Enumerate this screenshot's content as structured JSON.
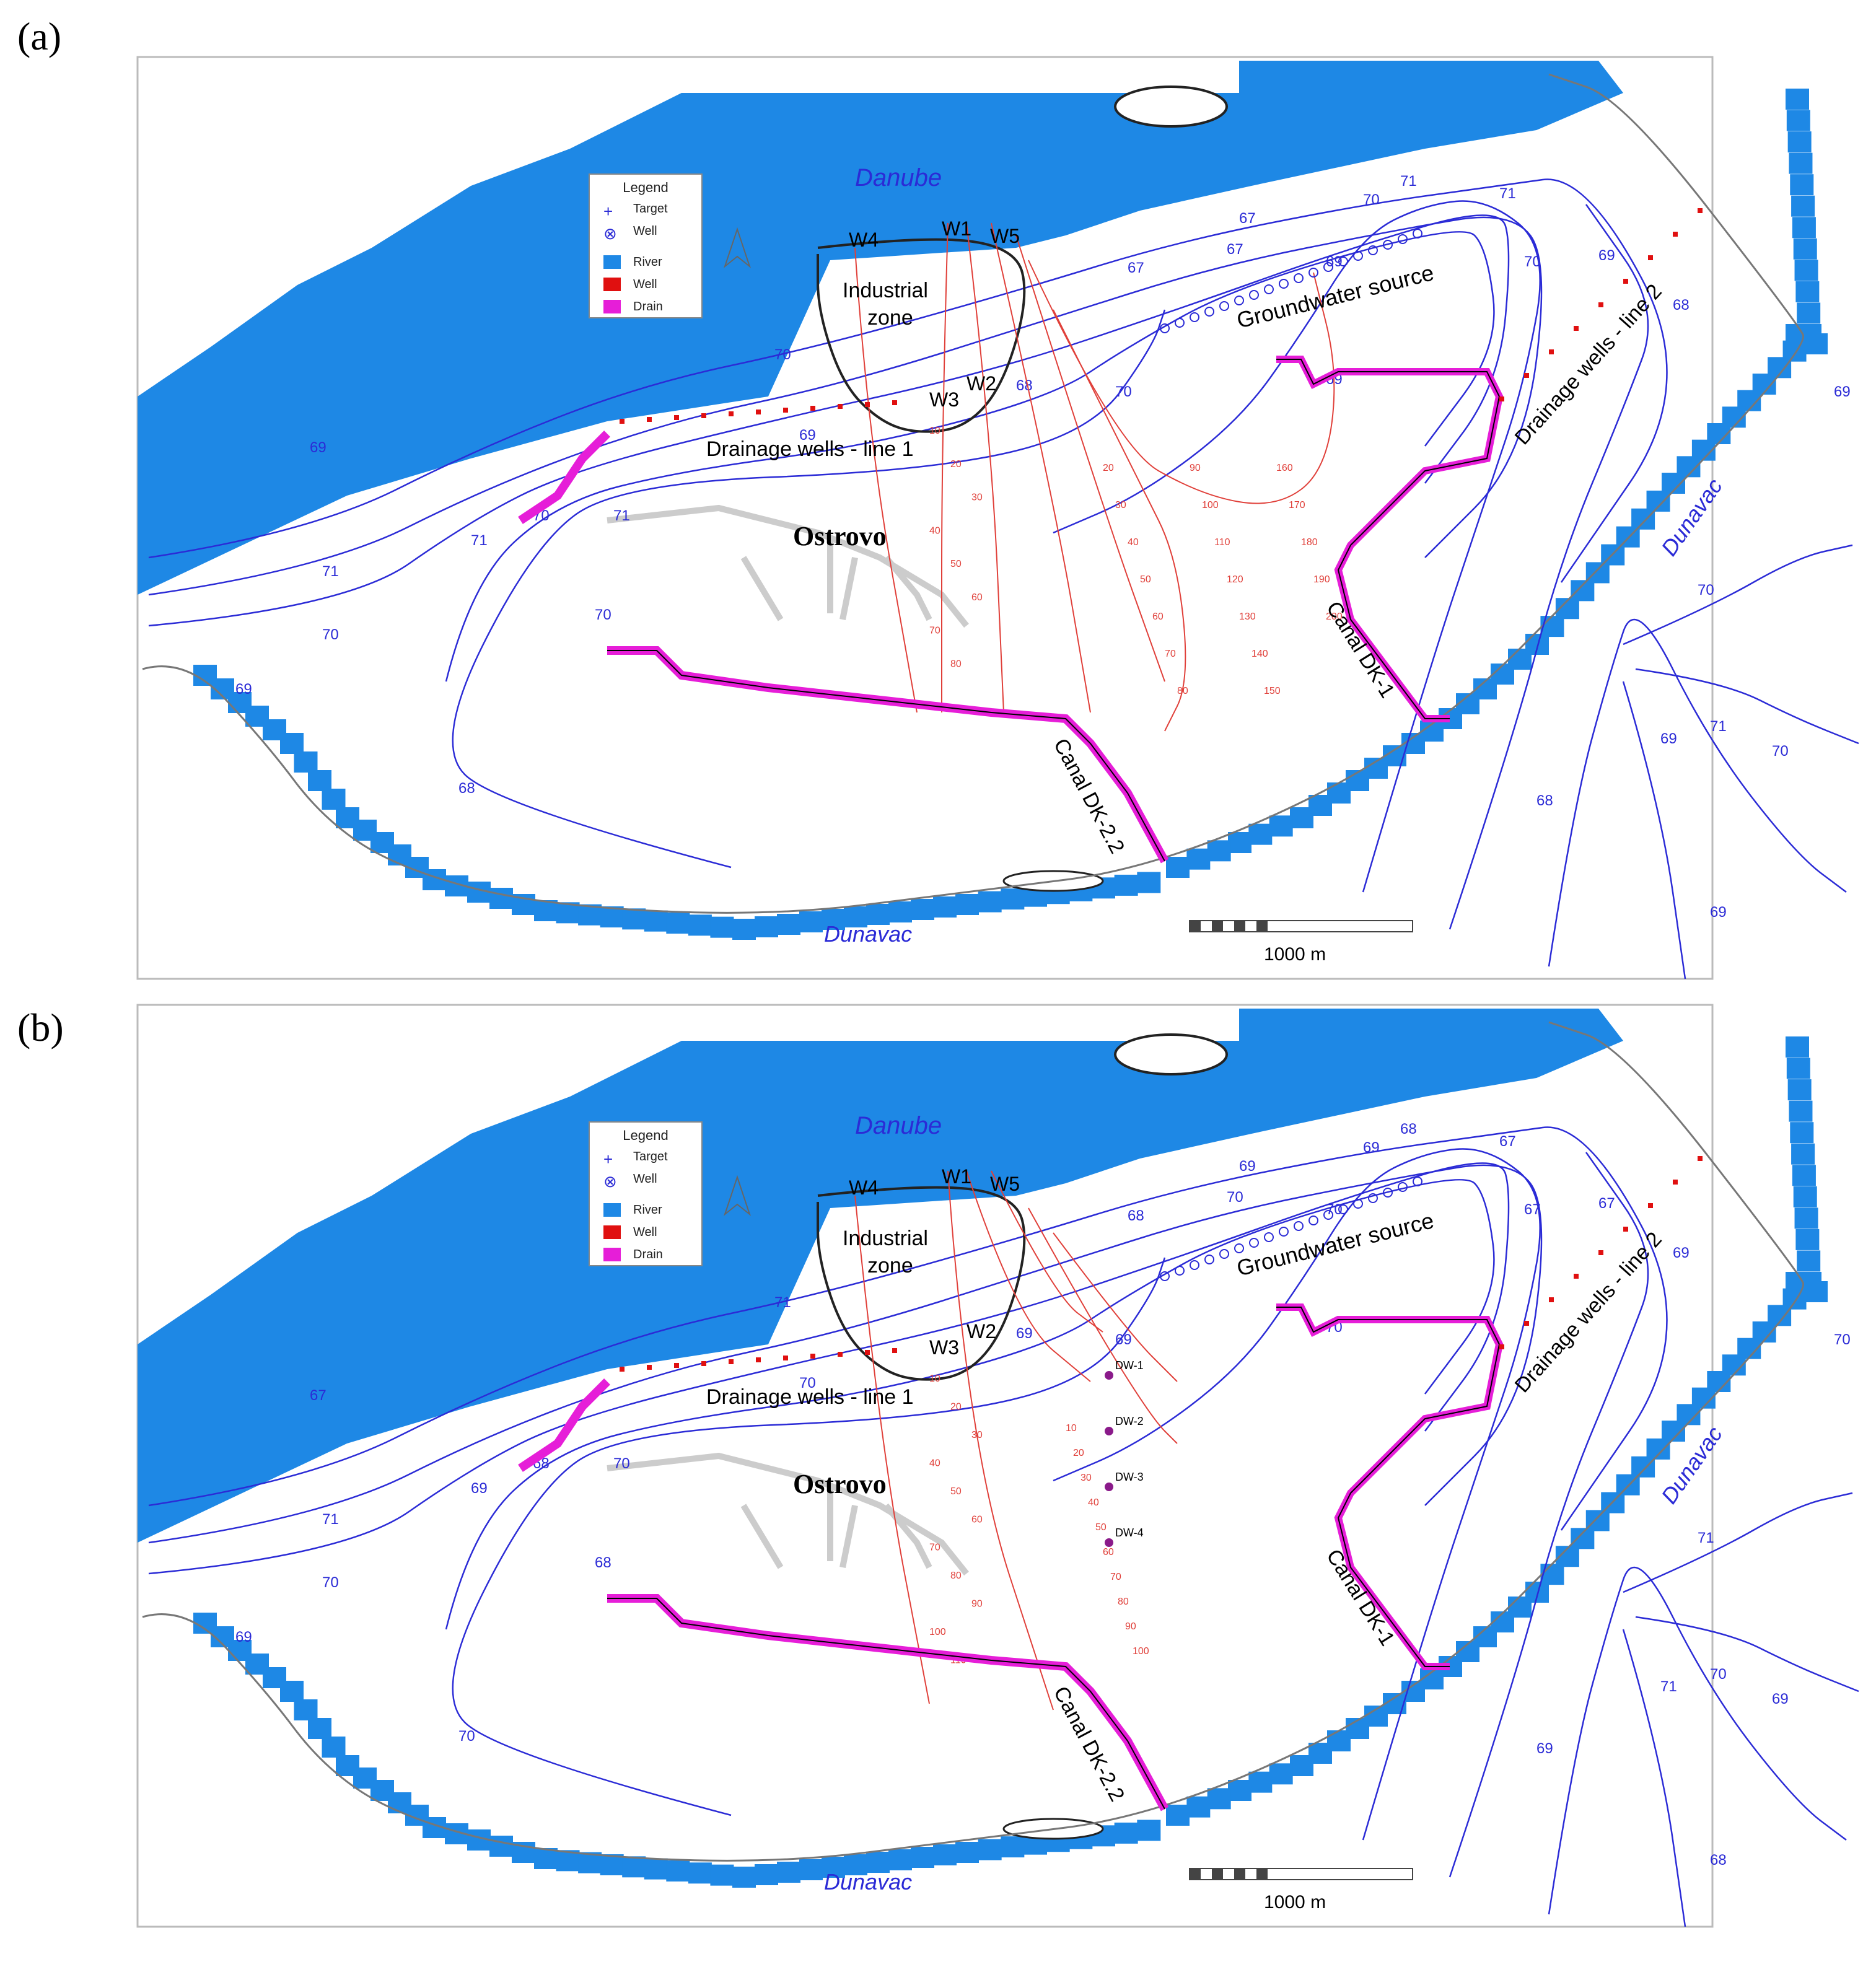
{
  "panels": [
    {
      "label": "(a)",
      "labels": {
        "danube": "Danube",
        "dunavac_bottom": "Dunavac",
        "dunavac_right": "Dunavac",
        "industrial_zone": "Industrial zone",
        "groundwater_source": "Groundwater source",
        "drainage_line1": "Drainage wells - line 1",
        "drainage_line2": "Drainage wells - line 2",
        "ostrovo": "Ostrovo",
        "canal_dk1": "Canal DK-1",
        "canal_dk22": "Canal DK-2.2",
        "scale": "1000 m"
      },
      "wells": [
        "W1",
        "W2",
        "W3",
        "W4",
        "W5"
      ],
      "dw_labels": [],
      "contours": [
        "71",
        "70",
        "71",
        "70",
        "69",
        "68",
        "69",
        "70",
        "71",
        "70",
        "69",
        "68",
        "67",
        "67",
        "67",
        "69",
        "70",
        "71",
        "71",
        "70",
        "69",
        "68",
        "69",
        "70",
        "69",
        "71",
        "70",
        "69",
        "68",
        "69",
        "70"
      ],
      "pathline_times_a": [
        "10",
        "20",
        "30",
        "40",
        "50",
        "60",
        "70",
        "80"
      ],
      "pathline_times_b": [
        "20",
        "30",
        "40",
        "50",
        "60",
        "70",
        "80",
        "90",
        "100",
        "110",
        "120",
        "130",
        "140",
        "150",
        "160",
        "170",
        "180",
        "190",
        "200"
      ]
    },
    {
      "label": "(b)",
      "labels": {
        "danube": "Danube",
        "dunavac_bottom": "Dunavac",
        "dunavac_right": "Dunavac",
        "industrial_zone": "Industrial zone",
        "groundwater_source": "Groundwater source",
        "drainage_line1": "Drainage wells - line 1",
        "drainage_line2": "Drainage wells - line 2",
        "ostrovo": "Ostrovo",
        "canal_dk1": "Canal DK-1",
        "canal_dk22": "Canal DK-2.2",
        "scale": "1000 m"
      },
      "wells": [
        "W1",
        "W2",
        "W3",
        "W4",
        "W5"
      ],
      "dw_labels": [
        "DW-1",
        "DW-2",
        "DW-3",
        "DW-4"
      ],
      "contours": [
        "71",
        "70",
        "69",
        "68",
        "67",
        "70",
        "69",
        "68",
        "70",
        "71",
        "70",
        "69",
        "68",
        "70",
        "69",
        "70",
        "69",
        "68",
        "67",
        "67",
        "67",
        "69",
        "70",
        "71",
        "71",
        "70",
        "69",
        "68",
        "69",
        "70",
        "69"
      ],
      "pathline_times_a": [
        "10",
        "20",
        "30",
        "40",
        "50",
        "60",
        "70",
        "80",
        "90",
        "100",
        "110"
      ],
      "pathline_times_b": [
        "10",
        "20",
        "30",
        "40",
        "50",
        "60",
        "70",
        "80",
        "90",
        "100"
      ]
    }
  ],
  "legend": {
    "title": "Legend",
    "items": [
      "Target",
      "Well",
      "River",
      "Well",
      "Drain"
    ]
  },
  "colors": {
    "river": "#1e88e5",
    "contour": "#2b2bd6",
    "pathline": "#e0403a",
    "drain": "#e61ed8",
    "well": "#e01010",
    "outline": "#777777",
    "zone": "#222222"
  }
}
